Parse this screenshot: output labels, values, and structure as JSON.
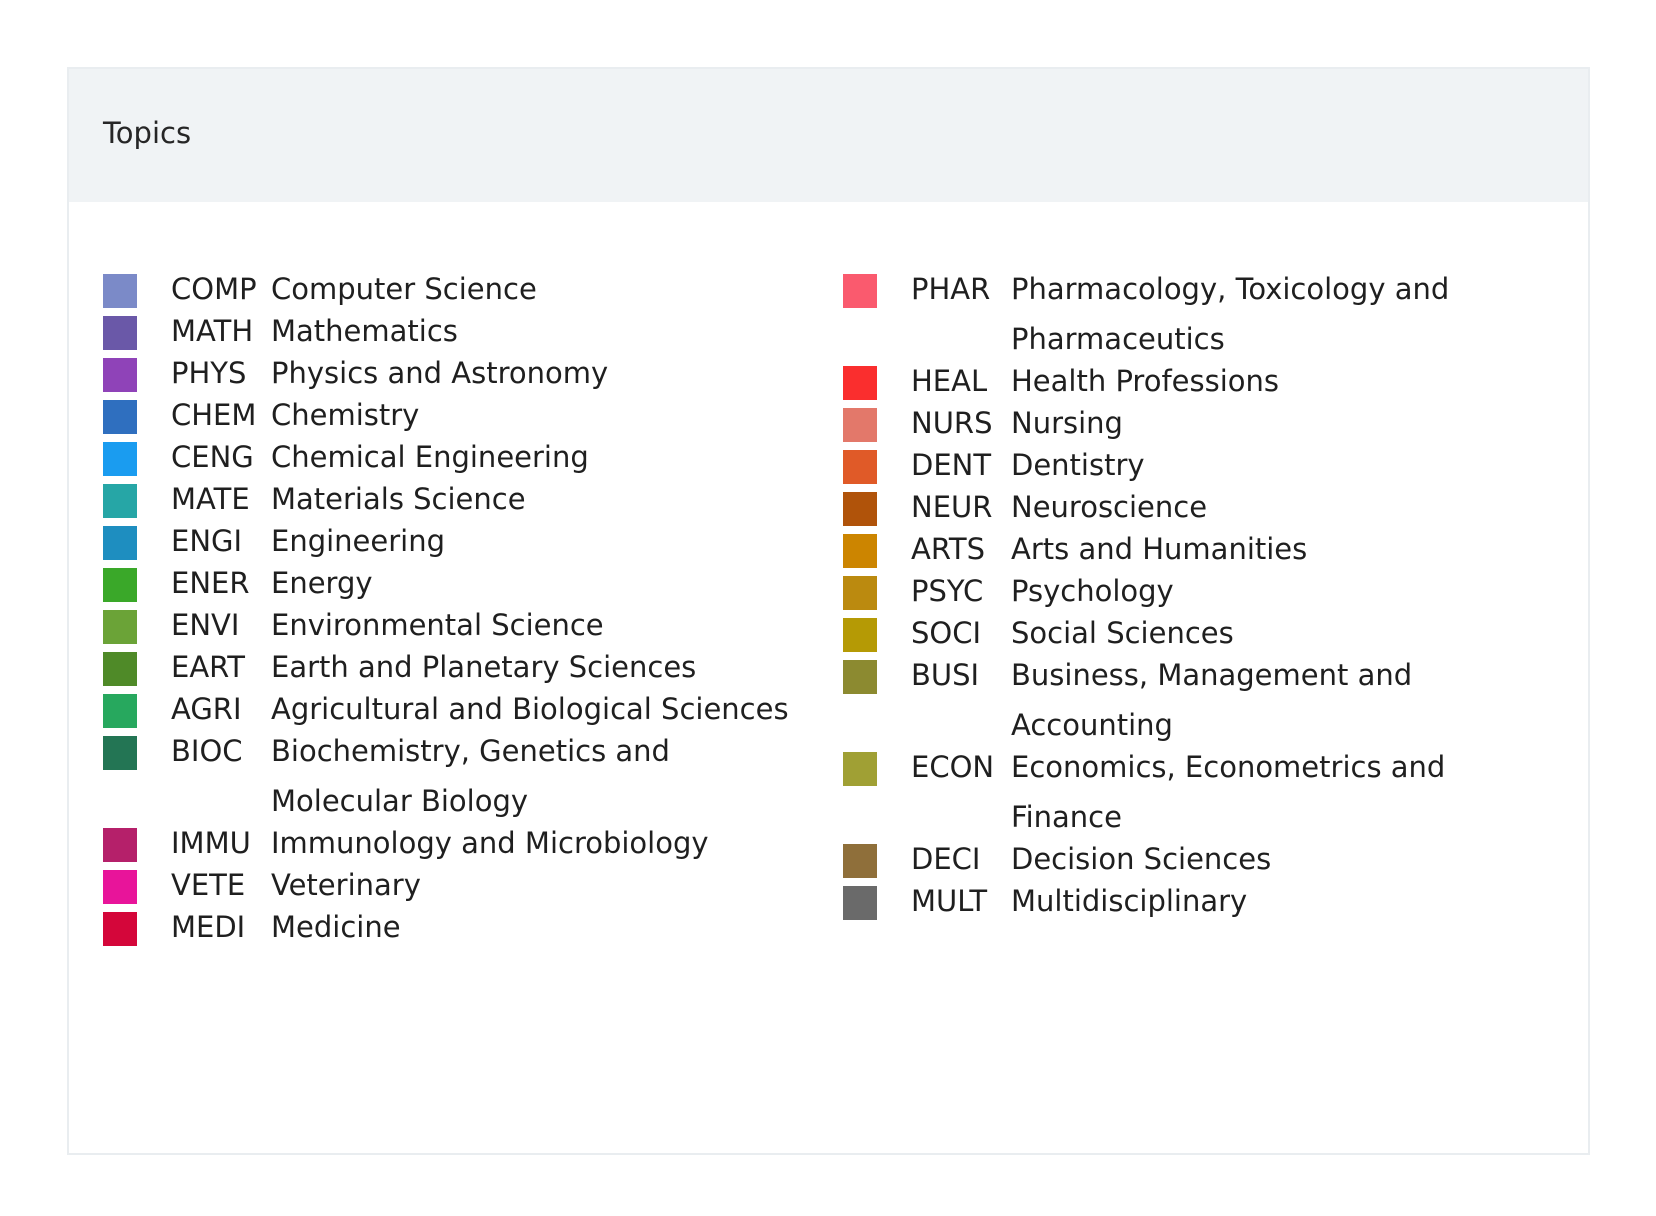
{
  "panel": {
    "title": "Topics"
  },
  "legend": {
    "left": [
      {
        "code": "COMP",
        "name": "Computer Science",
        "color": "#7b8ac8"
      },
      {
        "code": "MATH",
        "name": "Mathematics",
        "color": "#6a58a8"
      },
      {
        "code": "PHYS",
        "name": "Physics and Astronomy",
        "color": "#8f43b8"
      },
      {
        "code": "CHEM",
        "name": "Chemistry",
        "color": "#2f6fbf"
      },
      {
        "code": "CENG",
        "name": "Chemical Engineering",
        "color": "#1a9cf0"
      },
      {
        "code": "MATE",
        "name": "Materials Science",
        "color": "#26a6a6"
      },
      {
        "code": "ENGI",
        "name": "Engineering",
        "color": "#1e8ec0"
      },
      {
        "code": "ENER",
        "name": "Energy",
        "color": "#3aa829"
      },
      {
        "code": "ENVI",
        "name": "Environmental Science",
        "color": "#6ba337"
      },
      {
        "code": "EART",
        "name": "Earth and Planetary Sciences",
        "color": "#4f8a28"
      },
      {
        "code": "AGRI",
        "name": "Agricultural and Biological Sciences",
        "color": "#27a85e"
      },
      {
        "code": "BIOC",
        "name": "Biochemistry, Genetics and Molecular Biology",
        "color": "#237554"
      },
      {
        "code": "IMMU",
        "name": "Immunology and Microbiology",
        "color": "#b5206a"
      },
      {
        "code": "VETE",
        "name": "Veterinary",
        "color": "#e8149a"
      },
      {
        "code": "MEDI",
        "name": "Medicine",
        "color": "#d4063a"
      }
    ],
    "right": [
      {
        "code": "PHAR",
        "name": "Pharmacology, Toxicology and Pharmaceutics",
        "color": "#fa5a6e"
      },
      {
        "code": "HEAL",
        "name": "Health Professions",
        "color": "#fa2e2e"
      },
      {
        "code": "NURS",
        "name": "Nursing",
        "color": "#e3786a"
      },
      {
        "code": "DENT",
        "name": "Dentistry",
        "color": "#e05a28"
      },
      {
        "code": "NEUR",
        "name": "Neuroscience",
        "color": "#b0530a"
      },
      {
        "code": "ARTS",
        "name": "Arts and Humanities",
        "color": "#cc8500"
      },
      {
        "code": "PSYC",
        "name": "Psychology",
        "color": "#bb8a0f"
      },
      {
        "code": "SOCI",
        "name": "Social Sciences",
        "color": "#b59a05"
      },
      {
        "code": "BUSI",
        "name": "Business, Management and Accounting",
        "color": "#8c8a30"
      },
      {
        "code": "ECON",
        "name": "Economics, Econometrics and Finance",
        "color": "#a0a034"
      },
      {
        "code": "DECI",
        "name": "Decision Sciences",
        "color": "#8f6f3a"
      },
      {
        "code": "MULT",
        "name": "Multidisciplinary",
        "color": "#6a6a6a"
      }
    ]
  }
}
